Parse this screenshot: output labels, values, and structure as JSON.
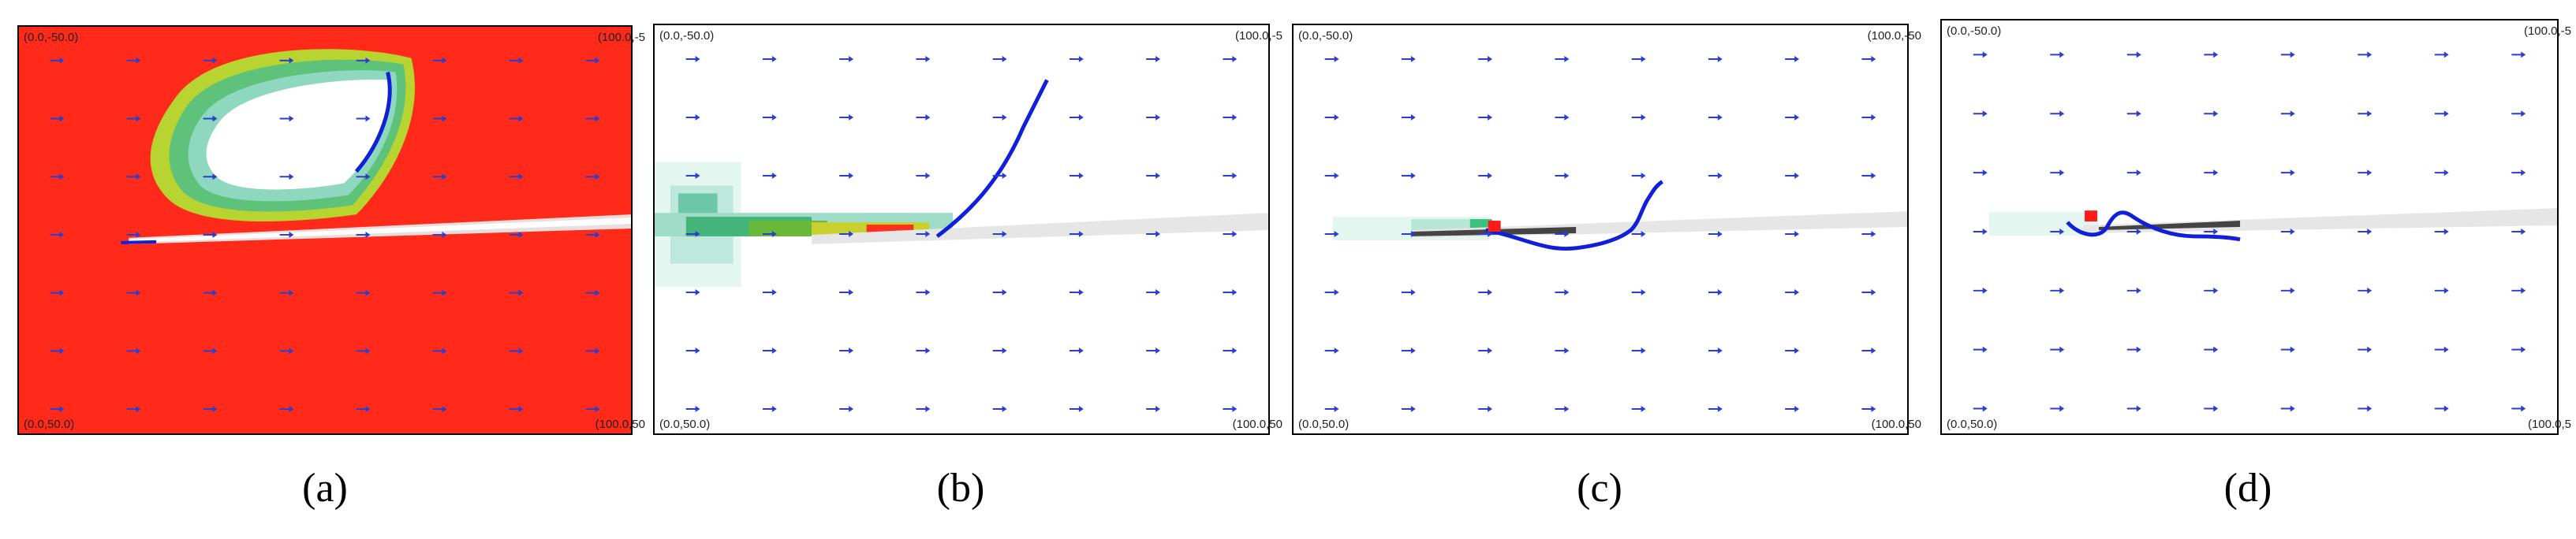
{
  "colors": {
    "background_red": "#ff2a1a",
    "arrow": "#2a3fd0",
    "trajectory": "#1020d8",
    "marker": "#ff1a1a",
    "particle": "#9a9a9a"
  },
  "panels": [
    {
      "caption": "(a)",
      "top_left": "(0.0,-50.0)",
      "top_right": "(100.0,-5",
      "bottom_left": "(0.0,50.0)",
      "bottom_right": "(100.0,50"
    },
    {
      "caption": "(b)",
      "top_left": "(0.0,-50.0)",
      "top_right": "(100.0,-5",
      "bottom_left": "(0.0,50.0)",
      "bottom_right": "(100.0,50"
    },
    {
      "caption": "(c)",
      "top_left": "(0.0,-50.0)",
      "top_right": "(100.0,-50",
      "bottom_left": "(0.0,50.0)",
      "bottom_right": "(100.0,50"
    },
    {
      "caption": "(d)",
      "top_left": "(0.0,-50.0)",
      "top_right": "(100.0,-5",
      "bottom_left": "(0.0,50.0)",
      "bottom_right": "(100.0,5"
    }
  ]
}
